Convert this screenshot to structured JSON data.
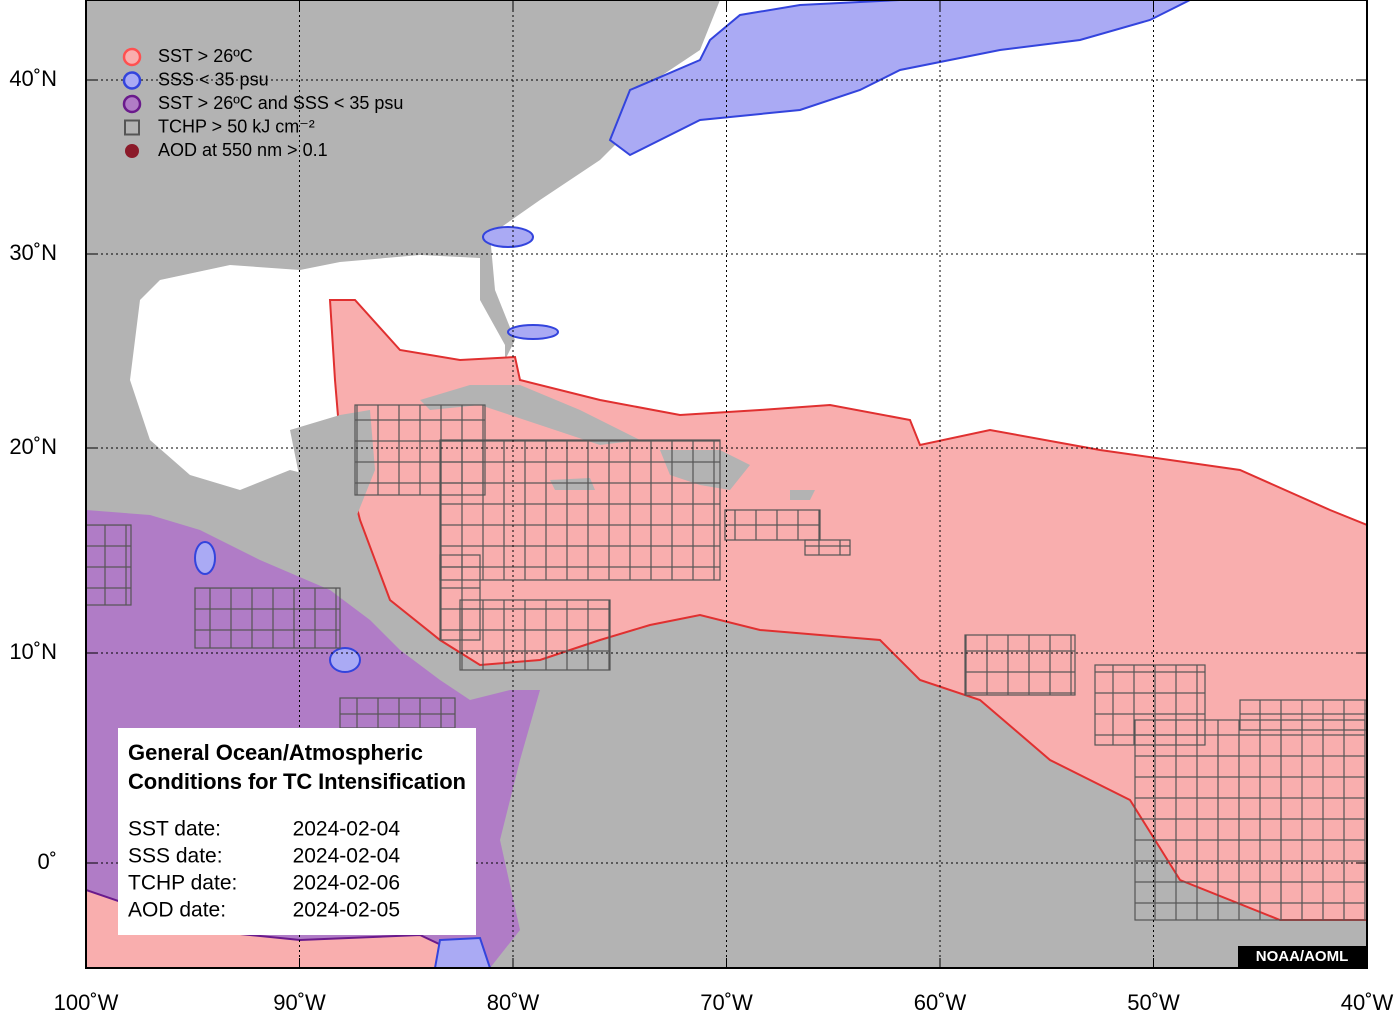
{
  "legend": [
    "SST > 26ºC",
    "SSS < 35 psu",
    "SST > 26ºC and SSS < 35 psu",
    "TCHP > 50 kJ cm⁻²",
    "AOD at 550 nm > 0.1"
  ],
  "x_axis_labels": [
    "100˚W",
    "90˚W",
    "80˚W",
    "70˚W",
    "60˚W",
    "50˚W",
    "40˚W"
  ],
  "y_axis_labels": [
    "40˚N",
    "30˚N",
    "20˚N",
    "10˚N",
    "0˚"
  ],
  "info_box": {
    "title_lines": [
      "General Ocean/Atmospheric",
      "Conditions for TC Intensification"
    ],
    "dates": [
      {
        "label": "SST date:",
        "value": "2024-02-04"
      },
      {
        "label": "SSS date:",
        "value": "2024-02-04"
      },
      {
        "label": "TCHP date:",
        "value": "2024-02-06"
      },
      {
        "label": "AOD date:",
        "value": "2024-02-05"
      }
    ]
  },
  "credit": "NOAA/AOML"
}
